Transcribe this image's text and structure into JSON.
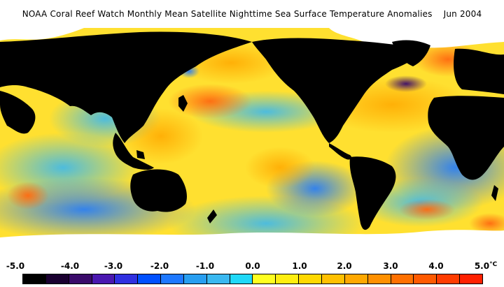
{
  "title": "NOAA Coral Reef Watch Monthly Mean Satellite Nighttime Sea Surface Temperature Anomalies",
  "date": "Jun 2004",
  "scale": {
    "unit": "°C",
    "ticks": [
      "-5.0",
      "-4.0",
      "-3.0",
      "-2.0",
      "-1.0",
      "0.0",
      "1.0",
      "2.0",
      "3.0",
      "4.0",
      "5.0"
    ],
    "colors": [
      "#000000",
      "#1a0030",
      "#3a0a6a",
      "#4a18b0",
      "#3030e0",
      "#0050ff",
      "#1e78ff",
      "#289ef0",
      "#3ab8f0",
      "#20d8f8",
      "#ffff20",
      "#ffee10",
      "#ffd800",
      "#ffc000",
      "#ffa800",
      "#ff9000",
      "#ff7000",
      "#ff5a00",
      "#ff3c00",
      "#ff2000"
    ]
  },
  "map": {
    "ocean_color": "#ffe030",
    "land_color": "#000000",
    "ice_color": "#ffffff"
  }
}
